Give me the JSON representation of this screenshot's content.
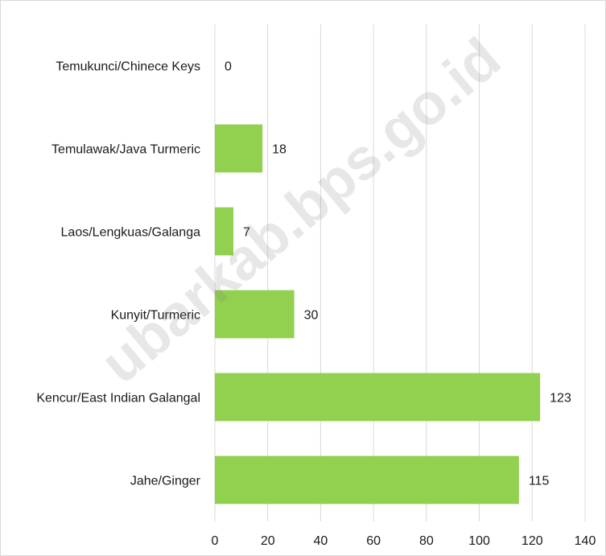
{
  "chart_data": {
    "type": "bar",
    "orientation": "horizontal",
    "categories": [
      "Temukunci/Chinece Keys",
      "Temulawak/Java Turmeric",
      "Laos/Lengkuas/Galanga",
      "Kunyit/Turmeric",
      "Kencur/East Indian Galangal",
      "Jahe/Ginger"
    ],
    "values": [
      0,
      18,
      7,
      30,
      123,
      115
    ],
    "xlim": [
      0,
      140
    ],
    "xticks": [
      0,
      20,
      40,
      60,
      80,
      100,
      120,
      140
    ],
    "grid": "vertical",
    "legend": "none",
    "bar_color": "#92d050",
    "grid_color": "#d9d9d9"
  },
  "watermark": "ubarkab.bps.go.id"
}
